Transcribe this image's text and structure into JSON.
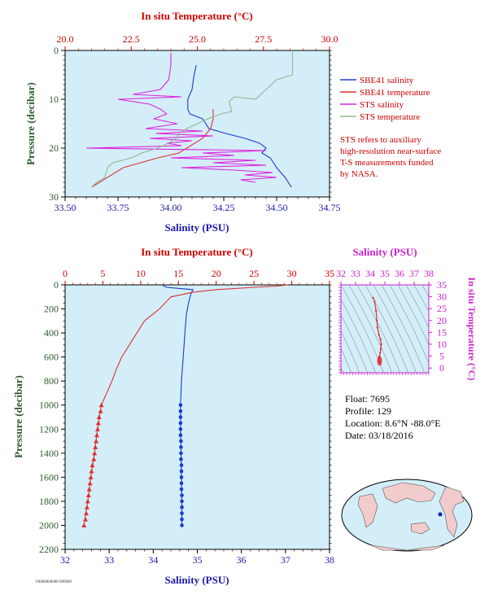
{
  "colors": {
    "temp_axis": "#cc0000",
    "salinity_axis_top": "#1a1aa8",
    "pressure_axis": "#2e5a2e",
    "panel_bg": "#d3eef8",
    "sbe_salinity": "#1a3bd1",
    "sbe_temperature": "#e03030",
    "sts_salinity": "#e020e0",
    "sts_temperature": "#8fb88f",
    "ts_axis": "#cc22cc"
  },
  "legend": {
    "items": [
      {
        "label": "SBE41 salinity",
        "color": "#1a3bd1"
      },
      {
        "label": "SBE41 temperature",
        "color": "#e03030"
      },
      {
        "label": "STS salinity",
        "color": "#e020e0"
      },
      {
        "label": "STS temperature",
        "color": "#8fb88f"
      }
    ],
    "note_lines": [
      "STS refers to auxiliary",
      "high-resolution near-surface",
      "T-S measurements funded",
      "by NASA."
    ]
  },
  "float_info": {
    "lines": [
      "Float:  7695",
      "Profile:  129",
      "Location:  8.6°N  -88.0°E",
      "Date:  03/18/2016"
    ]
  },
  "footer": {
    "code": "F0000000000 000000"
  },
  "chart_data": [
    {
      "type": "line",
      "panel": "near-surface",
      "title": "In situ Temperature (°C)",
      "xlabel": "Salinity (PSU)",
      "ylabel": "Pressure (decibar)",
      "salinity_ticks": [
        "33.50",
        "33.75",
        "34.00",
        "34.25",
        "34.50",
        "34.75"
      ],
      "temperature_ticks": [
        "20.0",
        "22.5",
        "25.0",
        "27.5",
        "30.0"
      ],
      "pressure_ticks": [
        "0",
        "10",
        "20",
        "30"
      ],
      "xlim_salinity": [
        33.5,
        34.75
      ],
      "xlim_temperature": [
        20,
        30
      ],
      "ylim_pressure": [
        0,
        30
      ],
      "series": [
        {
          "name": "SBE41 salinity",
          "axis": "salinity",
          "color": "#1a3bd1",
          "points": [
            [
              34.12,
              3
            ],
            [
              34.11,
              5
            ],
            [
              34.1,
              8
            ],
            [
              34.08,
              10
            ],
            [
              34.08,
              12
            ],
            [
              34.09,
              13
            ],
            [
              34.15,
              14
            ],
            [
              34.18,
              16
            ],
            [
              34.26,
              17
            ],
            [
              34.35,
              18
            ],
            [
              34.42,
              19
            ],
            [
              34.45,
              20
            ],
            [
              34.43,
              21
            ],
            [
              34.47,
              22
            ],
            [
              34.5,
              24
            ],
            [
              34.54,
              26
            ],
            [
              34.57,
              28
            ]
          ]
        },
        {
          "name": "SBE41 temperature",
          "axis": "temperature",
          "color": "#e03030",
          "points": [
            [
              21.0,
              28
            ],
            [
              21.3,
              27
            ],
            [
              22.2,
              24
            ],
            [
              23.5,
              22
            ],
            [
              24.3,
              21
            ],
            [
              25.2,
              18
            ],
            [
              25.5,
              16
            ],
            [
              25.6,
              14
            ],
            [
              25.6,
              12
            ]
          ]
        },
        {
          "name": "STS salinity",
          "axis": "salinity",
          "color": "#e020e0",
          "points": [
            [
              34.0,
              0.5
            ],
            [
              34.0,
              3
            ],
            [
              33.99,
              6
            ],
            [
              33.97,
              7
            ],
            [
              33.95,
              8
            ],
            [
              33.82,
              9
            ],
            [
              34.05,
              9.5
            ],
            [
              33.75,
              10
            ],
            [
              33.9,
              11
            ],
            [
              33.95,
              12
            ],
            [
              33.98,
              13
            ],
            [
              33.92,
              14
            ],
            [
              34.03,
              15
            ],
            [
              33.88,
              16
            ],
            [
              34.15,
              16.5
            ],
            [
              33.93,
              17
            ],
            [
              34.2,
              17.5
            ],
            [
              33.9,
              18
            ],
            [
              34.1,
              18.5
            ],
            [
              33.98,
              19
            ],
            [
              34.05,
              19.5
            ],
            [
              33.6,
              20
            ],
            [
              34.45,
              20.5
            ],
            [
              34.15,
              21
            ],
            [
              34.3,
              21.5
            ],
            [
              34.0,
              22
            ],
            [
              34.4,
              22.5
            ],
            [
              34.2,
              23
            ],
            [
              34.45,
              23.5
            ],
            [
              34.05,
              24
            ],
            [
              34.3,
              24.5
            ],
            [
              34.48,
              25
            ],
            [
              34.35,
              25.5
            ],
            [
              34.5,
              26
            ],
            [
              34.33,
              26.5
            ],
            [
              34.4,
              27
            ]
          ]
        },
        {
          "name": "STS temperature",
          "axis": "temperature",
          "color": "#8fb88f",
          "points": [
            [
              28.6,
              0
            ],
            [
              28.6,
              5
            ],
            [
              28.0,
              6
            ],
            [
              27.6,
              8
            ],
            [
              27.2,
              10
            ],
            [
              26.4,
              9.5
            ],
            [
              26.2,
              10.5
            ],
            [
              26.3,
              12.5
            ],
            [
              25.9,
              13
            ],
            [
              25.4,
              14
            ],
            [
              25.0,
              15
            ],
            [
              24.6,
              16
            ],
            [
              24.3,
              17
            ],
            [
              24.2,
              18
            ],
            [
              23.9,
              19
            ],
            [
              23.5,
              20
            ],
            [
              22.9,
              21
            ],
            [
              22.5,
              22
            ],
            [
              21.8,
              23
            ],
            [
              21.6,
              24
            ],
            [
              21.5,
              26
            ],
            [
              21.2,
              27
            ],
            [
              21.0,
              28
            ]
          ]
        }
      ]
    },
    {
      "type": "line",
      "panel": "full-profile",
      "title": "In situ Temperature (°C)",
      "xlabel": "Salinity (PSU)",
      "ylabel": "Pressure (decibar)",
      "salinity_ticks": [
        "32",
        "33",
        "34",
        "35",
        "36",
        "37",
        "38"
      ],
      "temperature_ticks": [
        "0",
        "5",
        "10",
        "15",
        "20",
        "25",
        "30",
        "35"
      ],
      "pressure_ticks": [
        "0",
        "200",
        "400",
        "600",
        "800",
        "1000",
        "1200",
        "1400",
        "1600",
        "1800",
        "2000",
        "2200"
      ],
      "xlim_salinity": [
        32,
        38
      ],
      "xlim_temperature": [
        0,
        35
      ],
      "ylim_pressure": [
        0,
        2200
      ],
      "series": [
        {
          "name": "SBE41 salinity",
          "axis": "salinity",
          "color": "#1a3bd1",
          "points": [
            [
              34.2,
              0
            ],
            [
              34.3,
              20
            ],
            [
              34.9,
              40
            ],
            [
              34.85,
              80
            ],
            [
              34.8,
              150
            ],
            [
              34.75,
              250
            ],
            [
              34.72,
              400
            ],
            [
              34.68,
              600
            ],
            [
              34.64,
              800
            ],
            [
              34.62,
              1000
            ],
            [
              34.62,
              1200
            ],
            [
              34.63,
              1400
            ],
            [
              34.64,
              1600
            ],
            [
              34.65,
              1800
            ],
            [
              34.65,
              2000
            ]
          ],
          "marker_points": [
            [
              34.62,
              1000
            ],
            [
              34.62,
              1050
            ],
            [
              34.62,
              1100
            ],
            [
              34.62,
              1150
            ],
            [
              34.62,
              1200
            ],
            [
              34.62,
              1250
            ],
            [
              34.63,
              1300
            ],
            [
              34.63,
              1350
            ],
            [
              34.63,
              1400
            ],
            [
              34.63,
              1450
            ],
            [
              34.64,
              1500
            ],
            [
              34.64,
              1550
            ],
            [
              34.64,
              1600
            ],
            [
              34.64,
              1650
            ],
            [
              34.64,
              1700
            ],
            [
              34.65,
              1750
            ],
            [
              34.65,
              1800
            ],
            [
              34.65,
              1850
            ],
            [
              34.65,
              1900
            ],
            [
              34.65,
              1950
            ],
            [
              34.65,
              2000
            ]
          ]
        },
        {
          "name": "SBE41 temperature",
          "axis": "temperature",
          "color": "#e03030",
          "points": [
            [
              29.5,
              0
            ],
            [
              28,
              10
            ],
            [
              25,
              20
            ],
            [
              20,
              40
            ],
            [
              17,
              60
            ],
            [
              14,
              100
            ],
            [
              12.5,
              200
            ],
            [
              10.5,
              300
            ],
            [
              9.5,
              400
            ],
            [
              8.5,
              500
            ],
            [
              7.5,
              600
            ],
            [
              6.8,
              700
            ],
            [
              6.2,
              800
            ],
            [
              5.5,
              900
            ],
            [
              4.8,
              1000
            ],
            [
              4.3,
              1200
            ],
            [
              3.9,
              1400
            ],
            [
              3.4,
              1600
            ],
            [
              3.0,
              1800
            ],
            [
              2.5,
              2000
            ]
          ],
          "marker_points": [
            [
              4.8,
              1000
            ],
            [
              4.7,
              1050
            ],
            [
              4.5,
              1100
            ],
            [
              4.4,
              1150
            ],
            [
              4.3,
              1200
            ],
            [
              4.2,
              1250
            ],
            [
              4.1,
              1300
            ],
            [
              4.0,
              1350
            ],
            [
              3.9,
              1400
            ],
            [
              3.8,
              1450
            ],
            [
              3.6,
              1500
            ],
            [
              3.5,
              1550
            ],
            [
              3.4,
              1600
            ],
            [
              3.3,
              1650
            ],
            [
              3.2,
              1700
            ],
            [
              3.1,
              1750
            ],
            [
              3.0,
              1800
            ],
            [
              2.9,
              1850
            ],
            [
              2.8,
              1900
            ],
            [
              2.7,
              1950
            ],
            [
              2.5,
              2000
            ]
          ]
        }
      ]
    },
    {
      "type": "scatter",
      "panel": "ts-diagram",
      "title": "Salinity (PSU)",
      "ylabel": "In situ Temperature (°C)",
      "salinity_ticks": [
        "32",
        "33",
        "34",
        "35",
        "36",
        "37",
        "38"
      ],
      "temperature_ticks": [
        "0",
        "5",
        "10",
        "15",
        "20",
        "25",
        "30",
        "35"
      ],
      "xlim_salinity": [
        32,
        38
      ],
      "ylim_temperature": [
        -2,
        35
      ],
      "series": [
        {
          "name": "T-S",
          "color": "#e03030",
          "points": [
            [
              34.2,
              29.5
            ],
            [
              34.3,
              28
            ],
            [
              34.4,
              24
            ],
            [
              34.45,
              20
            ],
            [
              34.5,
              17
            ],
            [
              34.6,
              14
            ],
            [
              34.7,
              12
            ],
            [
              34.75,
              10
            ],
            [
              34.72,
              8
            ],
            [
              34.68,
              6.5
            ],
            [
              34.64,
              5
            ],
            [
              34.63,
              4
            ],
            [
              34.64,
              3
            ],
            [
              34.65,
              2.5
            ]
          ]
        }
      ]
    }
  ]
}
